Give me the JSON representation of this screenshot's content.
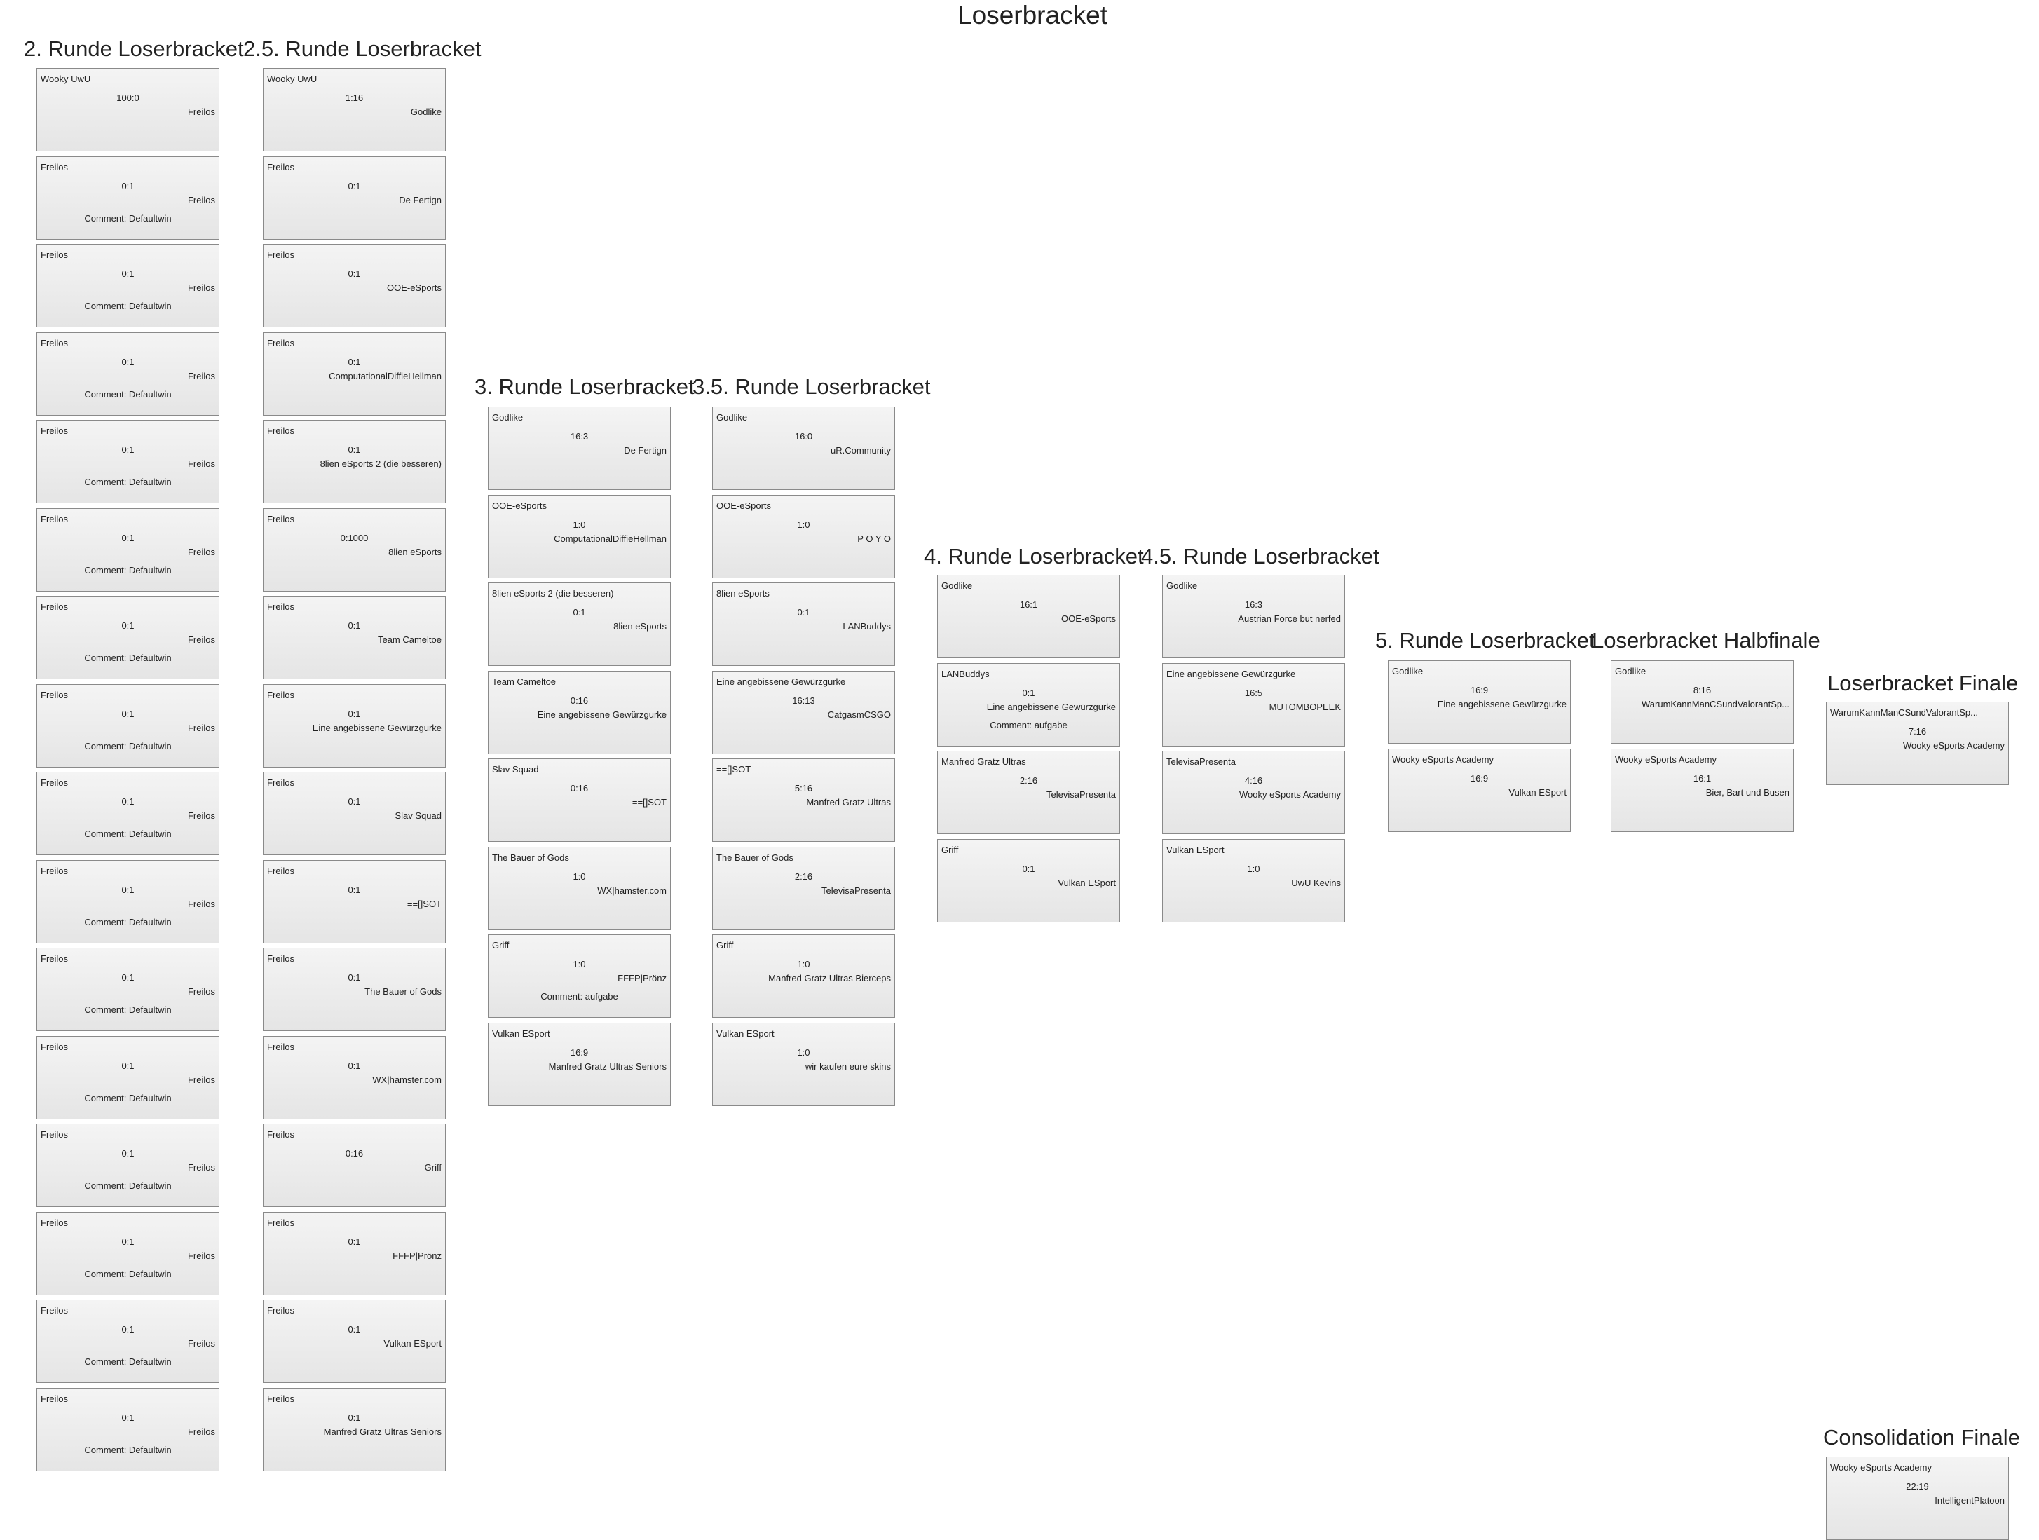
{
  "page_title": "Loserbracket",
  "rounds": [
    {
      "heading": "2. Runde Loserbracket",
      "matches": [
        {
          "team1": "Wooky UwU",
          "score": "100:0",
          "team2": "Freilos"
        },
        {
          "team1": "Freilos",
          "score": "0:1",
          "team2": "Freilos",
          "comment": "Comment: Defaultwin"
        },
        {
          "team1": "Freilos",
          "score": "0:1",
          "team2": "Freilos",
          "comment": "Comment: Defaultwin"
        },
        {
          "team1": "Freilos",
          "score": "0:1",
          "team2": "Freilos",
          "comment": "Comment: Defaultwin"
        },
        {
          "team1": "Freilos",
          "score": "0:1",
          "team2": "Freilos",
          "comment": "Comment: Defaultwin"
        },
        {
          "team1": "Freilos",
          "score": "0:1",
          "team2": "Freilos",
          "comment": "Comment: Defaultwin"
        },
        {
          "team1": "Freilos",
          "score": "0:1",
          "team2": "Freilos",
          "comment": "Comment: Defaultwin"
        },
        {
          "team1": "Freilos",
          "score": "0:1",
          "team2": "Freilos",
          "comment": "Comment: Defaultwin"
        },
        {
          "team1": "Freilos",
          "score": "0:1",
          "team2": "Freilos",
          "comment": "Comment: Defaultwin"
        },
        {
          "team1": "Freilos",
          "score": "0:1",
          "team2": "Freilos",
          "comment": "Comment: Defaultwin"
        },
        {
          "team1": "Freilos",
          "score": "0:1",
          "team2": "Freilos",
          "comment": "Comment: Defaultwin"
        },
        {
          "team1": "Freilos",
          "score": "0:1",
          "team2": "Freilos",
          "comment": "Comment: Defaultwin"
        },
        {
          "team1": "Freilos",
          "score": "0:1",
          "team2": "Freilos",
          "comment": "Comment: Defaultwin"
        },
        {
          "team1": "Freilos",
          "score": "0:1",
          "team2": "Freilos",
          "comment": "Comment: Defaultwin"
        },
        {
          "team1": "Freilos",
          "score": "0:1",
          "team2": "Freilos",
          "comment": "Comment: Defaultwin"
        },
        {
          "team1": "Freilos",
          "score": "0:1",
          "team2": "Freilos",
          "comment": "Comment: Defaultwin"
        }
      ]
    },
    {
      "heading": "2.5. Runde Loserbracket",
      "matches": [
        {
          "team1": "Wooky UwU",
          "score": "1:16",
          "team2": "Godlike"
        },
        {
          "team1": "Freilos",
          "score": "0:1",
          "team2": "De Fertign"
        },
        {
          "team1": "Freilos",
          "score": "0:1",
          "team2": "OOE-eSports"
        },
        {
          "team1": "Freilos",
          "score": "0:1",
          "team2": "ComputationalDiffieHellman"
        },
        {
          "team1": "Freilos",
          "score": "0:1",
          "team2": "8lien eSports 2 (die besseren)"
        },
        {
          "team1": "Freilos",
          "score": "0:1000",
          "team2": "8lien eSports"
        },
        {
          "team1": "Freilos",
          "score": "0:1",
          "team2": "Team Cameltoe"
        },
        {
          "team1": "Freilos",
          "score": "0:1",
          "team2": "Eine angebissene Gewürzgurke"
        },
        {
          "team1": "Freilos",
          "score": "0:1",
          "team2": "Slav Squad"
        },
        {
          "team1": "Freilos",
          "score": "0:1",
          "team2": "==[]SOT"
        },
        {
          "team1": "Freilos",
          "score": "0:1",
          "team2": "The Bauer of Gods"
        },
        {
          "team1": "Freilos",
          "score": "0:1",
          "team2": "WX|hamster.com"
        },
        {
          "team1": "Freilos",
          "score": "0:16",
          "team2": "Griff"
        },
        {
          "team1": "Freilos",
          "score": "0:1",
          "team2": "FFFP|Prönz"
        },
        {
          "team1": "Freilos",
          "score": "0:1",
          "team2": "Vulkan ESport"
        },
        {
          "team1": "Freilos",
          "score": "0:1",
          "team2": "Manfred Gratz Ultras Seniors"
        }
      ]
    },
    {
      "heading": "3. Runde Loserbracket",
      "matches": [
        {
          "team1": "Godlike",
          "score": "16:3",
          "team2": "De Fertign"
        },
        {
          "team1": "OOE-eSports",
          "score": "1:0",
          "team2": "ComputationalDiffieHellman"
        },
        {
          "team1": "8lien eSports 2 (die besseren)",
          "score": "0:1",
          "team2": "8lien eSports"
        },
        {
          "team1": "Team Cameltoe",
          "score": "0:16",
          "team2": "Eine angebissene Gewürzgurke"
        },
        {
          "team1": "Slav Squad",
          "score": "0:16",
          "team2": "==[]SOT"
        },
        {
          "team1": "The Bauer of Gods",
          "score": "1:0",
          "team2": "WX|hamster.com"
        },
        {
          "team1": "Griff",
          "score": "1:0",
          "team2": "FFFP|Prönz",
          "comment": "Comment: aufgabe"
        },
        {
          "team1": "Vulkan ESport",
          "score": "16:9",
          "team2": "Manfred Gratz Ultras Seniors"
        }
      ]
    },
    {
      "heading": "3.5. Runde Loserbracket",
      "matches": [
        {
          "team1": "Godlike",
          "score": "16:0",
          "team2": "uR.Community"
        },
        {
          "team1": "OOE-eSports",
          "score": "1:0",
          "team2": "P O Y O"
        },
        {
          "team1": "8lien eSports",
          "score": "0:1",
          "team2": "LANBuddys"
        },
        {
          "team1": "Eine angebissene Gewürzgurke",
          "score": "16:13",
          "team2": "CatgasmCSGO"
        },
        {
          "team1": "==[]SOT",
          "score": "5:16",
          "team2": "Manfred Gratz Ultras"
        },
        {
          "team1": "The Bauer of Gods",
          "score": "2:16",
          "team2": "TelevisaPresenta"
        },
        {
          "team1": "Griff",
          "score": "1:0",
          "team2": "Manfred Gratz Ultras Bierceps"
        },
        {
          "team1": "Vulkan ESport",
          "score": "1:0",
          "team2": "wir kaufen eure skins"
        }
      ]
    },
    {
      "heading": "4. Runde Loserbracket",
      "matches": [
        {
          "team1": "Godlike",
          "score": "16:1",
          "team2": "OOE-eSports"
        },
        {
          "team1": "LANBuddys",
          "score": "0:1",
          "team2": "Eine angebissene Gewürzgurke",
          "comment": "Comment: aufgabe"
        },
        {
          "team1": "Manfred Gratz Ultras",
          "score": "2:16",
          "team2": "TelevisaPresenta"
        },
        {
          "team1": "Griff",
          "score": "0:1",
          "team2": "Vulkan ESport"
        }
      ]
    },
    {
      "heading": "4.5. Runde Loserbracket",
      "matches": [
        {
          "team1": "Godlike",
          "score": "16:3",
          "team2": "Austrian Force but nerfed"
        },
        {
          "team1": "Eine angebissene Gewürzgurke",
          "score": "16:5",
          "team2": "MUTOMBOPEEK"
        },
        {
          "team1": "TelevisaPresenta",
          "score": "4:16",
          "team2": "Wooky eSports Academy"
        },
        {
          "team1": "Vulkan ESport",
          "score": "1:0",
          "team2": "UwU Kevins"
        }
      ]
    },
    {
      "heading": "5. Runde Loserbracket",
      "matches": [
        {
          "team1": "Godlike",
          "score": "16:9",
          "team2": "Eine angebissene Gewürzgurke"
        },
        {
          "team1": "Wooky eSports Academy",
          "score": "16:9",
          "team2": "Vulkan ESport"
        }
      ]
    },
    {
      "heading": "Loserbracket Halbfinale",
      "matches": [
        {
          "team1": "Godlike",
          "score": "8:16",
          "team2": "WarumKannManCSundValorantSp..."
        },
        {
          "team1": "Wooky eSports Academy",
          "score": "16:1",
          "team2": "Bier, Bart und Busen"
        }
      ]
    },
    {
      "heading": "Loserbracket Finale",
      "matches": [
        {
          "team1": "WarumKannManCSundValorantSp...",
          "score": "7:16",
          "team2": "Wooky eSports Academy"
        }
      ]
    },
    {
      "heading": "Consolidation Finale",
      "matches": [
        {
          "team1": "Wooky eSports Academy",
          "score": "22:19",
          "team2": "IntelligentPlatoon"
        }
      ]
    }
  ]
}
